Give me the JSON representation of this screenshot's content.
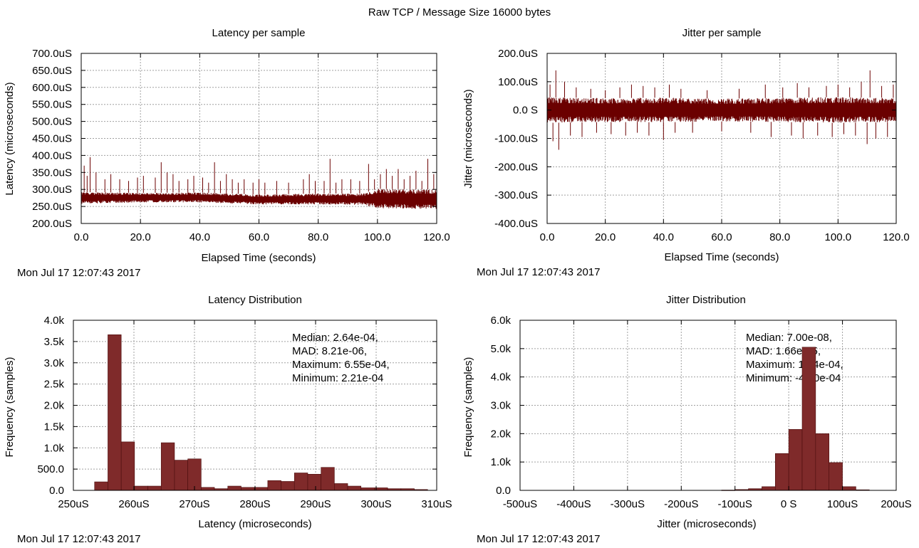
{
  "figure_title": "Raw TCP / Message Size 16000 bytes",
  "timestamp": "Mon Jul 17 12:07:43 2017",
  "colors": {
    "series": "#6b0000",
    "bar_fill": "#7f2a2a",
    "bar_edge": "#4a0d0d",
    "grid": "#a0a0a0"
  },
  "chart_data": [
    {
      "id": "latency-sample",
      "type": "line",
      "title": "Latency per sample",
      "xlabel": "Elapsed Time (seconds)",
      "ylabel": "Latency (microseconds)",
      "xlim": [
        0,
        120
      ],
      "ylim": [
        200,
        700
      ],
      "xticks": [
        0,
        20,
        40,
        60,
        80,
        100,
        120
      ],
      "xtick_labels": [
        "0.0",
        "20.0",
        "40.0",
        "60.0",
        "80.0",
        "100.0",
        "120.0"
      ],
      "yticks": [
        200,
        250,
        300,
        350,
        400,
        450,
        500,
        550,
        600,
        650,
        700
      ],
      "ytick_labels": [
        "200.0uS",
        "250.0uS",
        "300.0uS",
        "350.0uS",
        "400.0uS",
        "450.0uS",
        "500.0uS",
        "550.0uS",
        "600.0uS",
        "650.0uS",
        "700.0uS"
      ],
      "grid": true,
      "band": {
        "x": [
          0,
          20,
          40,
          60,
          80,
          95,
          100,
          120
        ],
        "low": [
          258,
          262,
          262,
          256,
          256,
          255,
          245,
          242
        ],
        "high": [
          292,
          290,
          291,
          285,
          288,
          288,
          302,
          300
        ]
      },
      "spikes": [
        [
          1,
          370
        ],
        [
          2,
          340
        ],
        [
          3,
          395
        ],
        [
          5,
          350
        ],
        [
          8,
          330
        ],
        [
          10,
          345
        ],
        [
          13,
          330
        ],
        [
          16,
          325
        ],
        [
          19,
          335
        ],
        [
          21,
          340
        ],
        [
          25,
          335
        ],
        [
          27,
          380
        ],
        [
          29,
          350
        ],
        [
          31,
          345
        ],
        [
          33,
          325
        ],
        [
          36,
          330
        ],
        [
          38,
          340
        ],
        [
          41,
          335
        ],
        [
          43,
          320
        ],
        [
          45,
          380
        ],
        [
          47,
          325
        ],
        [
          49,
          345
        ],
        [
          51,
          330
        ],
        [
          53,
          320
        ],
        [
          55,
          330
        ],
        [
          58,
          320
        ],
        [
          60,
          330
        ],
        [
          62,
          320
        ],
        [
          66,
          325
        ],
        [
          70,
          320
        ],
        [
          75,
          330
        ],
        [
          77,
          345
        ],
        [
          79,
          325
        ],
        [
          82,
          325
        ],
        [
          84,
          390
        ],
        [
          86,
          320
        ],
        [
          88,
          330
        ],
        [
          91,
          330
        ],
        [
          94,
          325
        ],
        [
          97,
          375
        ],
        [
          99,
          330
        ],
        [
          101,
          345
        ],
        [
          103,
          360
        ],
        [
          105,
          340
        ],
        [
          107,
          360
        ],
        [
          109,
          330
        ],
        [
          111,
          340
        ],
        [
          113,
          355
        ],
        [
          115,
          325
        ],
        [
          117,
          390
        ],
        [
          119,
          345
        ]
      ]
    },
    {
      "id": "jitter-sample",
      "type": "line",
      "title": "Jitter per sample",
      "xlabel": "Elapsed Time (seconds)",
      "ylabel": "Jitter (microseconds)",
      "xlim": [
        0,
        120
      ],
      "ylim": [
        -400,
        200
      ],
      "xticks": [
        0,
        20,
        40,
        60,
        80,
        100,
        120
      ],
      "xtick_labels": [
        "0.0",
        "20.0",
        "40.0",
        "60.0",
        "80.0",
        "100.0",
        "120.0"
      ],
      "yticks": [
        -400,
        -300,
        -200,
        -100,
        0,
        100,
        200
      ],
      "ytick_labels": [
        "-400.0uS",
        "-300.0uS",
        "-200.0uS",
        "-100.0uS",
        "0.0 S",
        "100.0uS",
        "200.0uS"
      ],
      "grid": true,
      "band": {
        "x": [
          0,
          20,
          40,
          60,
          80,
          100,
          120
        ],
        "low": [
          -45,
          -42,
          -43,
          -40,
          -42,
          -45,
          -42
        ],
        "high": [
          45,
          42,
          44,
          40,
          43,
          46,
          43
        ]
      },
      "spikes": [
        [
          1,
          90
        ],
        [
          2,
          -110
        ],
        [
          3,
          140
        ],
        [
          4,
          -140
        ],
        [
          6,
          100
        ],
        [
          8,
          -90
        ],
        [
          10,
          80
        ],
        [
          12,
          -95
        ],
        [
          15,
          75
        ],
        [
          17,
          -80
        ],
        [
          20,
          70
        ],
        [
          22,
          -85
        ],
        [
          25,
          80
        ],
        [
          27,
          -90
        ],
        [
          29,
          90
        ],
        [
          31,
          -80
        ],
        [
          33,
          85
        ],
        [
          35,
          -90
        ],
        [
          37,
          80
        ],
        [
          40,
          -105
        ],
        [
          42,
          90
        ],
        [
          44,
          -80
        ],
        [
          46,
          75
        ],
        [
          50,
          -80
        ],
        [
          55,
          70
        ],
        [
          60,
          -75
        ],
        [
          66,
          75
        ],
        [
          70,
          -80
        ],
        [
          75,
          90
        ],
        [
          77,
          -95
        ],
        [
          81,
          80
        ],
        [
          84,
          -90
        ],
        [
          86,
          95
        ],
        [
          88,
          -100
        ],
        [
          90,
          80
        ],
        [
          93,
          -90
        ],
        [
          96,
          85
        ],
        [
          98,
          -95
        ],
        [
          100,
          90
        ],
        [
          102,
          -85
        ],
        [
          104,
          80
        ],
        [
          106,
          -90
        ],
        [
          108,
          100
        ],
        [
          110,
          -120
        ],
        [
          111,
          140
        ],
        [
          113,
          -100
        ],
        [
          115,
          85
        ],
        [
          117,
          -95
        ],
        [
          119,
          90
        ]
      ]
    },
    {
      "id": "latency-dist",
      "type": "bar",
      "title": "Latency Distribution",
      "xlabel": "Latency (microseconds)",
      "ylabel": "Frequency (samples)",
      "xlim": [
        250,
        310
      ],
      "ylim": [
        0,
        4000
      ],
      "xticks": [
        250,
        260,
        270,
        280,
        290,
        300,
        310
      ],
      "xtick_labels": [
        "250uS",
        "260uS",
        "270uS",
        "280uS",
        "290uS",
        "300uS",
        "310uS"
      ],
      "yticks": [
        0,
        500,
        1000,
        1500,
        2000,
        2500,
        3000,
        3500,
        4000
      ],
      "ytick_labels": [
        "0.0",
        "500.0",
        "1.0k",
        "1.5k",
        "2.0k",
        "2.5k",
        "3.0k",
        "3.5k",
        "4.0k"
      ],
      "grid": true,
      "bin_start": 253.5,
      "bin_width": 2.2,
      "values": [
        200,
        3660,
        1140,
        100,
        100,
        1120,
        710,
        740,
        70,
        40,
        100,
        70,
        70,
        230,
        210,
        410,
        380,
        540,
        160,
        100,
        60,
        60,
        40,
        40,
        20
      ],
      "annotation": [
        "Median: 2.64e-04,",
        "MAD: 8.21e-06,",
        "Maximum: 6.55e-04,",
        "Minimum: 2.21e-04"
      ]
    },
    {
      "id": "jitter-dist",
      "type": "bar",
      "title": "Jitter Distribution",
      "xlabel": "Jitter (microseconds)",
      "ylabel": "Frequency (samples)",
      "xlim": [
        -500,
        200
      ],
      "ylim": [
        0,
        6000
      ],
      "xticks": [
        -500,
        -400,
        -300,
        -200,
        -100,
        0,
        100,
        200
      ],
      "xtick_labels": [
        "-500uS",
        "-400uS",
        "-300uS",
        "-200uS",
        "-100uS",
        "0 S",
        "100uS",
        "200uS"
      ],
      "yticks": [
        0,
        1000,
        2000,
        3000,
        4000,
        5000,
        6000
      ],
      "ytick_labels": [
        "0.0",
        "1.0k",
        "2.0k",
        "3.0k",
        "4.0k",
        "5.0k",
        "6.0k"
      ],
      "grid": true,
      "bin_start": -125,
      "bin_width": 25,
      "values": [
        10,
        30,
        60,
        130,
        1300,
        2150,
        5050,
        2000,
        980,
        130,
        20
      ],
      "annotation": [
        "Median: 7.00e-08,",
        "MAD: 1.66e-05,",
        "Maximum: 1.74e-04,",
        "Minimum: -4.00e-04"
      ]
    }
  ]
}
